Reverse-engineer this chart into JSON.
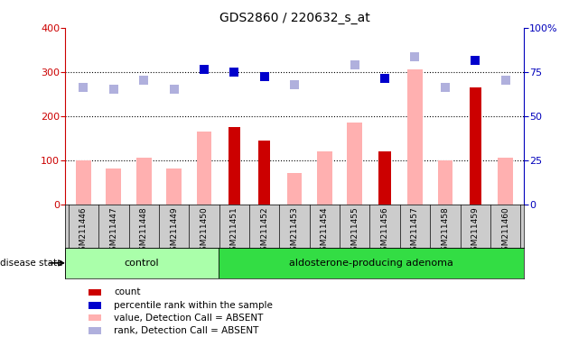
{
  "title": "GDS2860 / 220632_s_at",
  "samples": [
    "GSM211446",
    "GSM211447",
    "GSM211448",
    "GSM211449",
    "GSM211450",
    "GSM211451",
    "GSM211452",
    "GSM211453",
    "GSM211454",
    "GSM211455",
    "GSM211456",
    "GSM211457",
    "GSM211458",
    "GSM211459",
    "GSM211460"
  ],
  "n_samples": 15,
  "control_count": 5,
  "adenoma_count": 10,
  "ylim_left": [
    0,
    400
  ],
  "ylim_right": [
    0,
    100
  ],
  "yticks_left": [
    0,
    100,
    200,
    300,
    400
  ],
  "yticks_right": [
    0,
    25,
    50,
    75,
    100
  ],
  "yticklabels_right": [
    "0",
    "25",
    "50",
    "75",
    "100%"
  ],
  "count_bars": [
    0,
    0,
    0,
    0,
    0,
    175,
    145,
    0,
    0,
    0,
    120,
    0,
    0,
    265,
    0
  ],
  "count_color": "#cc0000",
  "value_absent_bars": [
    100,
    80,
    105,
    80,
    165,
    0,
    0,
    70,
    120,
    185,
    0,
    305,
    100,
    0,
    105
  ],
  "value_absent_color": "#ffb0b0",
  "rank_absent_squares": [
    265,
    260,
    280,
    260,
    0,
    0,
    0,
    270,
    0,
    315,
    285,
    335,
    265,
    0,
    280
  ],
  "rank_absent_color": "#b0b0dd",
  "percentile_squares": [
    0,
    0,
    0,
    0,
    305,
    300,
    290,
    0,
    0,
    0,
    285,
    0,
    0,
    325,
    0
  ],
  "percentile_color": "#0000cc",
  "control_color": "#aaffaa",
  "adenoma_color": "#33dd44",
  "group_label_color": "black",
  "disease_label": "disease state",
  "legend_items": [
    {
      "label": "count",
      "color": "#cc0000"
    },
    {
      "label": "percentile rank within the sample",
      "color": "#0000cc"
    },
    {
      "label": "value, Detection Call = ABSENT",
      "color": "#ffb0b0"
    },
    {
      "label": "rank, Detection Call = ABSENT",
      "color": "#b0b0dd"
    }
  ],
  "sample_bg_color": "#cccccc",
  "plot_bg_color": "#ffffff",
  "left_axis_color": "#cc0000",
  "right_axis_color": "#0000bb"
}
